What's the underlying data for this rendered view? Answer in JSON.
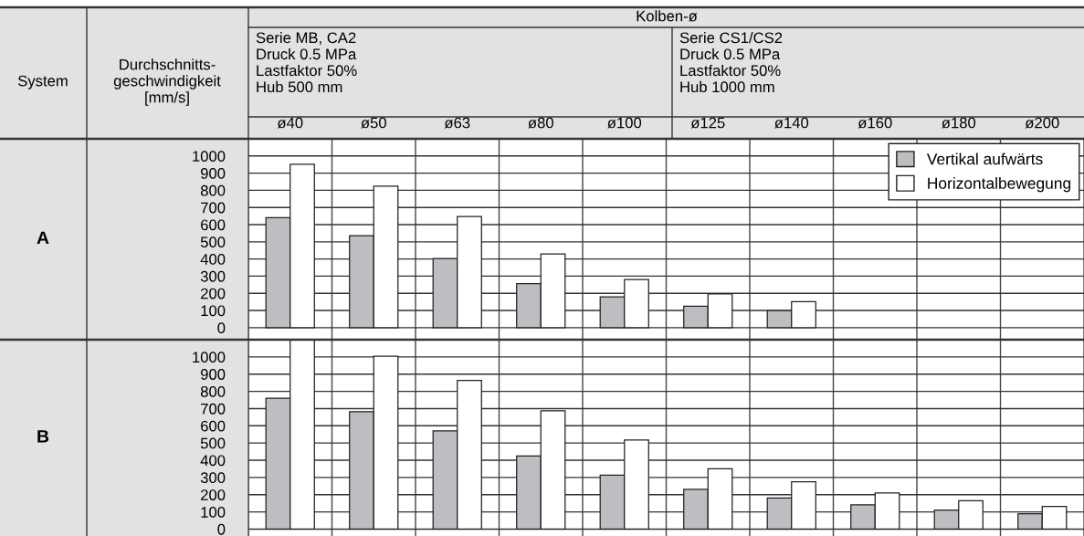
{
  "chart_data": [
    {
      "type": "bar",
      "ylabel": "A",
      "annotations": [
        "System",
        "Durchschnitts-\ngeschwindigkeit\n[mm/s]",
        "Kolben-ø",
        "Serie MB, CA2\nDruck 0.5 MPa\nLastfaktor 50%\nHub 500 mm",
        "Serie CS1/CS2\nDruck 0.5 MPa\nLastfaktor 50%\nHub 1000 mm"
      ],
      "categories": [
        "ø40",
        "ø50",
        "ø63",
        "ø80",
        "ø100",
        "ø125",
        "ø140",
        "ø160",
        "ø180",
        "ø200"
      ],
      "series": [
        {
          "name": "Vertikal aufwärts",
          "color": "#bcbec1",
          "values": [
            640,
            536,
            402,
            256,
            179,
            125,
            100,
            null,
            null,
            null
          ]
        },
        {
          "name": "Horizontalbewegung",
          "color": "#ffffff",
          "values": [
            952,
            824,
            647,
            429,
            280,
            196,
            152,
            null,
            null,
            null
          ]
        }
      ],
      "ylim": [
        -70,
        1100
      ],
      "yticks": [
        0,
        100,
        200,
        300,
        400,
        500,
        600,
        700,
        800,
        900,
        1000
      ],
      "grid": true,
      "legend": "top right"
    },
    {
      "type": "bar",
      "ylabel": "B",
      "categories": [
        null,
        null,
        null,
        null,
        null,
        null,
        null,
        null,
        null,
        null
      ],
      "series": [
        {
          "color": "#bcbec1",
          "values": [
            760,
            682,
            571,
            424,
            313,
            231,
            181,
            141,
            110,
            89
          ]
        },
        {
          "color": "#ffffff",
          "values": [
            1100,
            1004,
            864,
            687,
            517,
            351,
            275,
            210,
            165,
            132
          ]
        }
      ],
      "ylim": [
        -40,
        1100
      ],
      "yticks": [
        0,
        100,
        200,
        300,
        400,
        500,
        600,
        700,
        800,
        900,
        1000
      ],
      "grid": true,
      "tick_labels": "y"
    }
  ]
}
